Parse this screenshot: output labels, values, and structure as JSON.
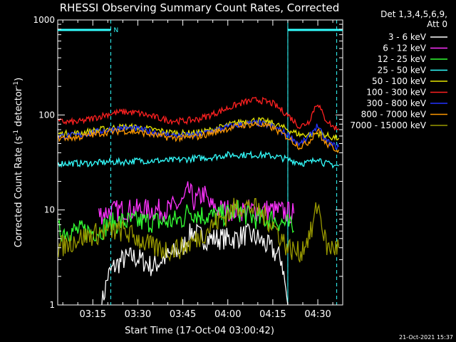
{
  "chart_data": {
    "type": "line",
    "title": "RHESSI Observing Summary Count Rates, Corrected",
    "xlabel": "Start Time (17-Oct-04 03:00:42)",
    "ylabel_prefix": "Corrected Count Rate (s",
    "ylabel_mid": " detector",
    "ylabel_suffix": ")",
    "ylabel_sup": "-1",
    "y_scale": "log",
    "ylim": [
      1,
      1000
    ],
    "xlim_minutes": [
      3.3,
      39.0
    ],
    "x_unit": "hours after 03:00:42, plotted as time of day in minutes after 03:00",
    "yticks": [
      {
        "value": 1,
        "label": "1"
      },
      {
        "value": 10,
        "label": "10"
      },
      {
        "value": 100,
        "label": "100"
      },
      {
        "value": 1000,
        "label": "1000"
      }
    ],
    "xticks": [
      {
        "value": 15,
        "label": "03:15"
      },
      {
        "value": 30,
        "label": "03:30"
      },
      {
        "value": 45,
        "label": "03:45"
      },
      {
        "value": 60,
        "label": "04:00"
      },
      {
        "value": 75,
        "label": "04:15"
      },
      {
        "value": 90,
        "label": "04:30"
      }
    ],
    "xdomain": [
      3.3,
      98.3
    ],
    "legend": {
      "position": "top-right",
      "header_lines": [
        "Det 1,3,4,5,6,9,",
        "Att 0"
      ],
      "entries": [
        {
          "label": "3 - 6 keV",
          "color": "#ffffff"
        },
        {
          "label": "6 - 12 keV",
          "color": "#ff33ff"
        },
        {
          "label": "12 - 25 keV",
          "color": "#33ff33"
        },
        {
          "label": "25 - 50 keV",
          "color": "#33ffff"
        },
        {
          "label": "50 - 100 keV",
          "color": "#e6e600"
        },
        {
          "label": "100 - 300 keV",
          "color": "#ff2020"
        },
        {
          "label": "300 - 800 keV",
          "color": "#2233ff"
        },
        {
          "label": "800 - 7000 keV",
          "color": "#ff9900"
        },
        {
          "label": "7000 - 15000 keV",
          "color": "#999900"
        }
      ]
    },
    "annotations": {
      "attenuator_marker": "N",
      "night_bars": [
        [
          3.3,
          21.0
        ],
        [
          80.0,
          98.3
        ]
      ],
      "saa_lines": [
        21.0,
        80.0,
        96.3
      ]
    },
    "series": [
      {
        "name": "3 - 6 keV",
        "color": "#ffffff",
        "points": [
          [
            18,
            1
          ],
          [
            20,
            2
          ],
          [
            22,
            2.5
          ],
          [
            25,
            3
          ],
          [
            28,
            3.2
          ],
          [
            31,
            3
          ],
          [
            35,
            2.5
          ],
          [
            38,
            3
          ],
          [
            42,
            3.5
          ],
          [
            45,
            4
          ],
          [
            48,
            6
          ],
          [
            52,
            5
          ],
          [
            55,
            5
          ],
          [
            58,
            5
          ],
          [
            62,
            5
          ],
          [
            66,
            5.5
          ],
          [
            70,
            5
          ],
          [
            74,
            4
          ],
          [
            78,
            3
          ],
          [
            80,
            1
          ]
        ]
      },
      {
        "name": "6 - 12 keV",
        "color": "#ff33ff",
        "points": [
          [
            17,
            9
          ],
          [
            20,
            9.5
          ],
          [
            25,
            10
          ],
          [
            30,
            10
          ],
          [
            35,
            10
          ],
          [
            40,
            10
          ],
          [
            45,
            12
          ],
          [
            47,
            16
          ],
          [
            49,
            12
          ],
          [
            52,
            15
          ],
          [
            54,
            11
          ],
          [
            58,
            10
          ],
          [
            62,
            10
          ],
          [
            66,
            10
          ],
          [
            70,
            10
          ],
          [
            74,
            10
          ],
          [
            79,
            9.5
          ],
          [
            82,
            9.2
          ]
        ]
      },
      {
        "name": "12 - 25 keV",
        "color": "#33ff33",
        "points": [
          [
            3.5,
            6
          ],
          [
            10,
            6
          ],
          [
            17,
            6
          ],
          [
            20,
            7
          ],
          [
            25,
            7.5
          ],
          [
            30,
            7.5
          ],
          [
            35,
            7.5
          ],
          [
            40,
            7.5
          ],
          [
            45,
            8
          ],
          [
            47,
            10
          ],
          [
            50,
            9
          ],
          [
            55,
            8.5
          ],
          [
            60,
            9
          ],
          [
            63,
            10
          ],
          [
            66,
            9
          ],
          [
            70,
            8
          ],
          [
            75,
            8
          ],
          [
            80,
            7
          ],
          [
            82,
            6
          ]
        ]
      },
      {
        "name": "25 - 50 keV",
        "color": "#33ffff",
        "points": [
          [
            3.5,
            31
          ],
          [
            10,
            31
          ],
          [
            15,
            31
          ],
          [
            20,
            32
          ],
          [
            25,
            32
          ],
          [
            30,
            33
          ],
          [
            35,
            33
          ],
          [
            40,
            33
          ],
          [
            45,
            34
          ],
          [
            50,
            35
          ],
          [
            55,
            36
          ],
          [
            60,
            38
          ],
          [
            65,
            38
          ],
          [
            70,
            38
          ],
          [
            75,
            37
          ],
          [
            80,
            34
          ],
          [
            85,
            31
          ],
          [
            88,
            32
          ],
          [
            90,
            36
          ],
          [
            92,
            31
          ],
          [
            95,
            30
          ],
          [
            97,
            29
          ]
        ]
      },
      {
        "name": "50 - 100 keV",
        "color": "#e6e600",
        "points": [
          [
            3.5,
            63
          ],
          [
            10,
            64
          ],
          [
            15,
            68
          ],
          [
            20,
            72
          ],
          [
            25,
            75
          ],
          [
            30,
            74
          ],
          [
            35,
            70
          ],
          [
            40,
            66
          ],
          [
            45,
            64
          ],
          [
            50,
            65
          ],
          [
            55,
            70
          ],
          [
            60,
            78
          ],
          [
            65,
            86
          ],
          [
            70,
            88
          ],
          [
            75,
            82
          ],
          [
            80,
            70
          ],
          [
            84,
            62
          ],
          [
            88,
            62
          ],
          [
            90,
            64
          ],
          [
            92,
            62
          ],
          [
            95,
            58
          ],
          [
            97,
            57
          ]
        ]
      },
      {
        "name": "100 - 300 keV",
        "color": "#ff2020",
        "points": [
          [
            3.5,
            85
          ],
          [
            10,
            84
          ],
          [
            15,
            92
          ],
          [
            20,
            102
          ],
          [
            25,
            108
          ],
          [
            30,
            105
          ],
          [
            35,
            96
          ],
          [
            40,
            88
          ],
          [
            45,
            86
          ],
          [
            50,
            90
          ],
          [
            55,
            102
          ],
          [
            60,
            118
          ],
          [
            65,
            135
          ],
          [
            70,
            145
          ],
          [
            75,
            132
          ],
          [
            80,
            100
          ],
          [
            84,
            75
          ],
          [
            87,
            85
          ],
          [
            89,
            120
          ],
          [
            90,
            135
          ],
          [
            92,
            95
          ],
          [
            95,
            75
          ],
          [
            97,
            72
          ]
        ]
      },
      {
        "name": "300 - 800 keV",
        "color": "#2233ff",
        "points": [
          [
            3.5,
            60
          ],
          [
            10,
            61
          ],
          [
            15,
            65
          ],
          [
            20,
            70
          ],
          [
            25,
            73
          ],
          [
            30,
            71
          ],
          [
            35,
            66
          ],
          [
            40,
            62
          ],
          [
            45,
            60
          ],
          [
            50,
            62
          ],
          [
            55,
            68
          ],
          [
            60,
            75
          ],
          [
            65,
            80
          ],
          [
            70,
            82
          ],
          [
            75,
            76
          ],
          [
            80,
            62
          ],
          [
            84,
            49
          ],
          [
            87,
            58
          ],
          [
            89,
            72
          ],
          [
            90,
            78
          ],
          [
            92,
            56
          ],
          [
            95,
            48
          ],
          [
            97,
            46
          ]
        ]
      },
      {
        "name": "800 - 7000 keV",
        "color": "#ff9900",
        "points": [
          [
            3.5,
            57
          ],
          [
            10,
            58
          ],
          [
            15,
            62
          ],
          [
            20,
            66
          ],
          [
            25,
            68
          ],
          [
            30,
            66
          ],
          [
            35,
            62
          ],
          [
            40,
            58
          ],
          [
            45,
            57
          ],
          [
            50,
            59
          ],
          [
            55,
            65
          ],
          [
            60,
            72
          ],
          [
            65,
            78
          ],
          [
            70,
            80
          ],
          [
            75,
            73
          ],
          [
            80,
            58
          ],
          [
            84,
            46
          ],
          [
            87,
            52
          ],
          [
            89,
            64
          ],
          [
            90,
            70
          ],
          [
            92,
            52
          ],
          [
            95,
            45
          ],
          [
            97,
            43
          ]
        ]
      },
      {
        "name": "7000 - 15000 keV",
        "color": "#999900",
        "points": [
          [
            3.5,
            4
          ],
          [
            10,
            5
          ],
          [
            15,
            5.5
          ],
          [
            20,
            6
          ],
          [
            25,
            6
          ],
          [
            30,
            5
          ],
          [
            35,
            4
          ],
          [
            40,
            3.8
          ],
          [
            45,
            4
          ],
          [
            50,
            5
          ],
          [
            55,
            7
          ],
          [
            60,
            9
          ],
          [
            63,
            11
          ],
          [
            66,
            11
          ],
          [
            70,
            10
          ],
          [
            75,
            7
          ],
          [
            80,
            4
          ],
          [
            84,
            3.5
          ],
          [
            88,
            6
          ],
          [
            90,
            12
          ],
          [
            91,
            8
          ],
          [
            93,
            4
          ],
          [
            97,
            4
          ]
        ]
      }
    ]
  },
  "footer": {
    "timestamp": "21-Oct-2021 15:37"
  }
}
